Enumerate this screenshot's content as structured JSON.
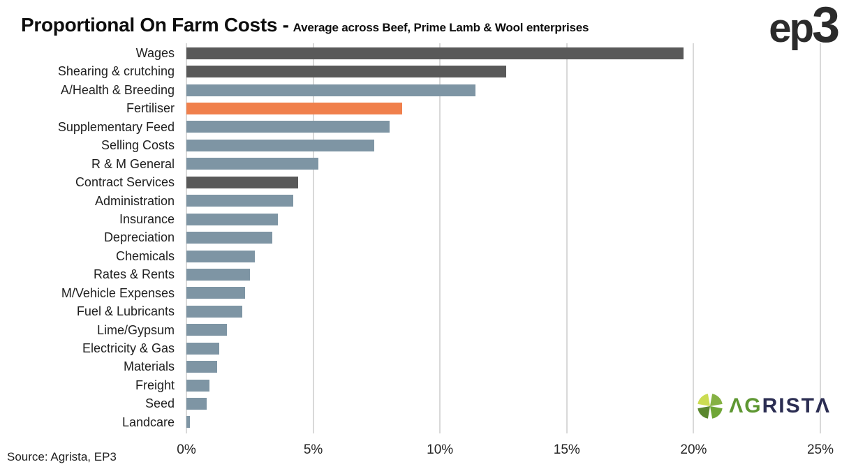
{
  "header": {
    "title": "Proportional On Farm Costs -",
    "subtitle": "Average across Beef, Prime Lamb & Wool enterprises",
    "logo_prefix": "ep",
    "logo_digit": "3"
  },
  "footer": {
    "source": "Source: Agrista, EP3",
    "agrista_logo": {
      "prefix": "ΛG",
      "suffix": "RISTΛ",
      "pie_colors": [
        "#cbdc52",
        "#85b143",
        "#6fa636",
        "#5a872e"
      ]
    }
  },
  "colors": {
    "dark": "#595959",
    "steel": "#7e95a4",
    "orange": "#f0804c",
    "gridline": "#d9d9d9",
    "agrista_green": "#5e9732",
    "agrista_navy": "#2b2d52",
    "logo_dark": "#2b2b2b"
  },
  "chart_data": {
    "type": "bar",
    "orientation": "horizontal",
    "title": "Proportional On Farm Costs -",
    "subtitle": "Average across Beef, Prime Lamb & Wool enterprises",
    "categories": [
      "Wages",
      "Shearing & crutching",
      "A/Health & Breeding",
      "Fertiliser",
      "Supplementary Feed",
      "Selling Costs",
      "R & M General",
      "Contract Services",
      "Administration",
      "Insurance",
      "Depreciation",
      "Chemicals",
      "Rates & Rents",
      "M/Vehicle Expenses",
      "Fuel & Lubricants",
      "Lime/Gypsum",
      "Electricity & Gas",
      "Materials",
      "Freight",
      "Seed",
      "Landcare"
    ],
    "values": [
      19.6,
      12.6,
      11.4,
      8.5,
      8.0,
      7.4,
      5.2,
      4.4,
      4.2,
      3.6,
      3.4,
      2.7,
      2.5,
      2.3,
      2.2,
      1.6,
      1.3,
      1.2,
      0.9,
      0.8,
      0.15
    ],
    "bar_color_keys": [
      "dark",
      "dark",
      "steel",
      "orange",
      "steel",
      "steel",
      "steel",
      "dark",
      "steel",
      "steel",
      "steel",
      "steel",
      "steel",
      "steel",
      "steel",
      "steel",
      "steel",
      "steel",
      "steel",
      "steel",
      "steel"
    ],
    "x_ticks": [
      "0%",
      "5%",
      "10%",
      "15%",
      "20%",
      "25%"
    ],
    "xlim": [
      0,
      25
    ],
    "grid": "vertical",
    "legend": "none",
    "source": "Source: Agrista, EP3"
  }
}
